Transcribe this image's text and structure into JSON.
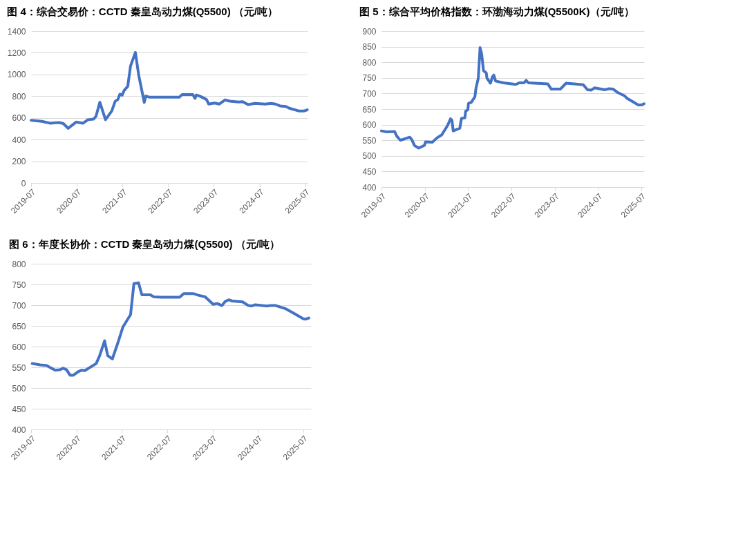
{
  "chart_data": [
    {
      "type": "line",
      "title": "图 4：综合交易价：CCTD 秦皇岛动力煤(Q5500) （元/吨）",
      "grid": "y",
      "line_style": "solid",
      "marker": "none",
      "x": [
        "2019-07-01",
        "2019-09-25",
        "2019-11-28",
        "2020-02-10",
        "2020-03-15",
        "2020-04-22",
        "2020-06-25",
        "2020-08-20",
        "2020-09-28",
        "2020-11-12",
        "2020-12-01",
        "2021-01-01",
        "2021-02-15",
        "2021-04-06",
        "2021-05-03",
        "2021-05-25",
        "2021-06-10",
        "2021-06-28",
        "2021-07-15",
        "2021-08-12",
        "2021-09-03",
        "2021-10-12",
        "2021-11-08",
        "2021-12-08",
        "2021-12-22",
        "2022-01-03",
        "2022-02-03",
        "2022-09-28",
        "2022-10-20",
        "2023-01-15",
        "2023-02-01",
        "2023-02-12",
        "2023-03-10",
        "2023-05-04",
        "2023-05-22",
        "2023-07-07",
        "2023-08-13",
        "2023-09-28",
        "2023-11-05",
        "2024-01-18",
        "2024-02-15",
        "2024-04-01",
        "2024-05-25",
        "2024-08-15",
        "2024-10-01",
        "2024-11-06",
        "2024-12-12",
        "2025-01-28",
        "2025-02-24",
        "2025-05-15",
        "2025-06-20",
        "2025-07-18"
      ],
      "series": [
        {
          "color": "#4472c4",
          "values": [
            578,
            568,
            551,
            557,
            547,
            504,
            561,
            551,
            583,
            589,
            614,
            744,
            583,
            663,
            752,
            769,
            818,
            809,
            854,
            890,
            1076,
            1203,
            992,
            822,
            742,
            801,
            790,
            790,
            814,
            814,
            780,
            811,
            801,
            769,
            727,
            737,
            727,
            765,
            754,
            746,
            750,
            722,
            733,
            727,
            733,
            727,
            710,
            705,
            689,
            663,
            663,
            674
          ]
        }
      ],
      "xlim": [
        "2019-07-01",
        "2025-07-20"
      ],
      "xticks": [
        "2019-07",
        "2020-07",
        "2021-07",
        "2022-07",
        "2023-07",
        "2024-07",
        "2025-07"
      ],
      "ylim": [
        0,
        1400
      ],
      "yticks": [
        0,
        200,
        400,
        600,
        800,
        1000,
        1200,
        1400
      ]
    },
    {
      "type": "line",
      "title": "图 5：综合平均价格指数：环渤海动力煤(Q5500K)（元/吨）",
      "grid": "y",
      "line_style": "solid",
      "marker": "none",
      "x": [
        "2019-07-01",
        "2019-08-15",
        "2019-10-20",
        "2019-11-08",
        "2019-12-08",
        "2020-02-25",
        "2020-03-13",
        "2020-04-05",
        "2020-05-10",
        "2020-06-28",
        "2020-07-07",
        "2020-09-03",
        "2020-10-12",
        "2020-11-20",
        "2021-01-08",
        "2021-02-03",
        "2021-02-15",
        "2021-02-25",
        "2021-04-22",
        "2021-05-06",
        "2021-06-04",
        "2021-06-10",
        "2021-06-29",
        "2021-07-04",
        "2021-07-28",
        "2021-08-27",
        "2021-09-06",
        "2021-09-25",
        "2021-10-10",
        "2021-10-24",
        "2021-11-08",
        "2021-12-01",
        "2021-12-07",
        "2022-01-06",
        "2022-01-22",
        "2022-02-03",
        "2022-02-18",
        "2022-04-25",
        "2022-08-08",
        "2022-09-06",
        "2022-10-15",
        "2022-11-03",
        "2022-11-22",
        "2023-05-04",
        "2023-06-03",
        "2023-08-18",
        "2023-10-06",
        "2023-12-12",
        "2024-02-28",
        "2024-04-03",
        "2024-05-06",
        "2024-06-03",
        "2024-08-28",
        "2024-09-28",
        "2024-11-06",
        "2024-12-15",
        "2025-02-12",
        "2025-03-01",
        "2025-04-28",
        "2025-06-06",
        "2025-07-03",
        "2025-07-25"
      ],
      "series": [
        {
          "color": "#4472c4",
          "values": [
            580,
            577,
            578,
            563,
            550,
            560,
            552,
            533,
            525,
            534,
            545,
            544,
            558,
            567,
            597,
            619,
            614,
            580,
            589,
            620,
            622,
            643,
            648,
            668,
            672,
            689,
            718,
            749,
            847,
            825,
            773,
            766,
            749,
            733,
            753,
            759,
            740,
            734,
            729,
            734,
            734,
            742,
            734,
            731,
            714,
            714,
            733,
            731,
            728,
            712,
            711,
            718,
            712,
            715,
            714,
            703,
            692,
            685,
            672,
            663,
            663,
            667
          ]
        }
      ],
      "xlim": [
        "2019-07-01",
        "2025-07-25"
      ],
      "xticks": [
        "2019-07",
        "2020-07",
        "2021-07",
        "2022-07",
        "2023-07",
        "2024-07",
        "2025-07"
      ],
      "ylim": [
        400,
        900
      ],
      "yticks": [
        400,
        450,
        500,
        550,
        600,
        650,
        700,
        750,
        800,
        850,
        900
      ]
    },
    {
      "type": "line",
      "title": "图 6：年度长协价：CCTD 秦皇岛动力煤(Q5500) （元/吨）",
      "grid": "y",
      "line_style": "solid",
      "marker": "none",
      "x": [
        "2019-07-10",
        "2019-09-12",
        "2019-11-06",
        "2019-12-04",
        "2020-01-12",
        "2020-02-18",
        "2020-03-15",
        "2020-04-12",
        "2020-05-09",
        "2020-06-06",
        "2020-07-12",
        "2020-08-09",
        "2020-09-06",
        "2020-12-06",
        "2021-01-03",
        "2021-02-12",
        "2021-03-09",
        "2021-04-15",
        "2021-06-01",
        "2021-07-09",
        "2021-09-09",
        "2021-10-06",
        "2021-11-12",
        "2021-12-09",
        "2022-02-15",
        "2022-03-16",
        "2022-05-15",
        "2022-10-09",
        "2022-11-12",
        "2023-01-25",
        "2023-03-09",
        "2023-05-03",
        "2023-07-06",
        "2023-08-09",
        "2023-09-15",
        "2023-10-12",
        "2023-11-09",
        "2023-12-06",
        "2024-02-28",
        "2024-04-15",
        "2024-05-12",
        "2024-06-09",
        "2024-09-09",
        "2024-10-15",
        "2024-11-21",
        "2025-02-12",
        "2025-04-18",
        "2025-07-01",
        "2025-07-18",
        "2025-08-15"
      ],
      "series": [
        {
          "color": "#4472c4",
          "values": [
            559,
            556,
            554,
            549,
            543,
            544,
            548,
            544,
            531,
            531,
            539,
            543,
            542,
            559,
            578,
            614,
            578,
            570,
            611,
            647,
            677,
            752,
            754,
            725,
            725,
            720,
            719,
            719,
            728,
            728,
            724,
            720,
            702,
            704,
            699,
            709,
            713,
            710,
            708,
            699,
            698,
            701,
            698,
            699,
            699,
            691,
            680,
            667,
            666,
            669
          ]
        }
      ],
      "xlim": [
        "2019-07-01",
        "2025-09-01"
      ],
      "xticks": [
        "2019-07",
        "2020-07",
        "2021-07",
        "2022-07",
        "2023-07",
        "2024-07",
        "2025-07"
      ],
      "ylim": [
        400,
        800
      ],
      "yticks": [
        400,
        450,
        500,
        550,
        600,
        650,
        700,
        750,
        800
      ]
    }
  ]
}
